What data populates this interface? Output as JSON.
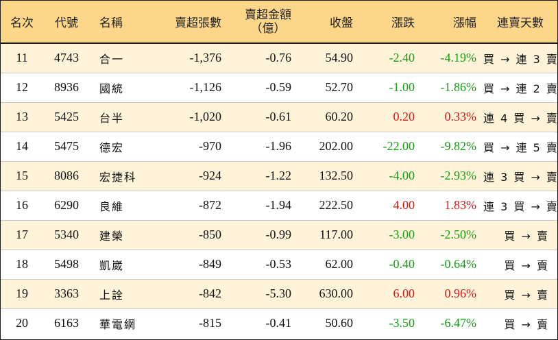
{
  "headers": {
    "rank": "名次",
    "code": "代號",
    "name": "名稱",
    "shares": "賣超張數",
    "amount_line1": "賣超金額",
    "amount_line2": "（億）",
    "close": "收盤",
    "change": "漲跌",
    "pct": "漲幅",
    "streak": "連賣天數"
  },
  "rows": [
    {
      "rank": "11",
      "code": "4743",
      "name": "合一",
      "shares": "-1,376",
      "amount": "-0.76",
      "close": "54.90",
      "change": "-2.40",
      "pct": "-4.19%",
      "streak": "買 → 連 3 賣",
      "dir": "green"
    },
    {
      "rank": "12",
      "code": "8936",
      "name": "國統",
      "shares": "-1,126",
      "amount": "-0.59",
      "close": "52.70",
      "change": "-1.00",
      "pct": "-1.86%",
      "streak": "買 → 連 2 賣",
      "dir": "green"
    },
    {
      "rank": "13",
      "code": "5425",
      "name": "台半",
      "shares": "-1,020",
      "amount": "-0.61",
      "close": "60.20",
      "change": "0.20",
      "pct": "0.33%",
      "streak": "連 4 買 → 賣",
      "dir": "red"
    },
    {
      "rank": "14",
      "code": "5475",
      "name": "德宏",
      "shares": "-970",
      "amount": "-1.96",
      "close": "202.00",
      "change": "-22.00",
      "pct": "-9.82%",
      "streak": "買 → 連 5 賣",
      "dir": "green"
    },
    {
      "rank": "15",
      "code": "8086",
      "name": "宏捷科",
      "shares": "-924",
      "amount": "-1.22",
      "close": "132.50",
      "change": "-4.00",
      "pct": "-2.93%",
      "streak": "連 3 買 → 賣",
      "dir": "green"
    },
    {
      "rank": "16",
      "code": "6290",
      "name": "良維",
      "shares": "-872",
      "amount": "-1.94",
      "close": "222.50",
      "change": "4.00",
      "pct": "1.83%",
      "streak": "連 3 買 → 賣",
      "dir": "red"
    },
    {
      "rank": "17",
      "code": "5340",
      "name": "建榮",
      "shares": "-850",
      "amount": "-0.99",
      "close": "117.00",
      "change": "-3.00",
      "pct": "-2.50%",
      "streak": "買 → 賣",
      "dir": "green"
    },
    {
      "rank": "18",
      "code": "5498",
      "name": "凱崴",
      "shares": "-849",
      "amount": "-0.53",
      "close": "62.00",
      "change": "-0.40",
      "pct": "-0.64%",
      "streak": "買 → 賣",
      "dir": "green"
    },
    {
      "rank": "19",
      "code": "3363",
      "name": "上詮",
      "shares": "-842",
      "amount": "-5.30",
      "close": "630.00",
      "change": "6.00",
      "pct": "0.96%",
      "streak": "買 → 賣",
      "dir": "red"
    },
    {
      "rank": "20",
      "code": "6163",
      "name": "華電網",
      "shares": "-815",
      "amount": "-0.41",
      "close": "50.60",
      "change": "-3.50",
      "pct": "-6.47%",
      "streak": "買 → 賣",
      "dir": "green"
    }
  ],
  "colors": {
    "header_bg": "#fcd78a",
    "odd_row_bg": "#fff3d9",
    "up": "#e01010",
    "down": "#10a010"
  }
}
